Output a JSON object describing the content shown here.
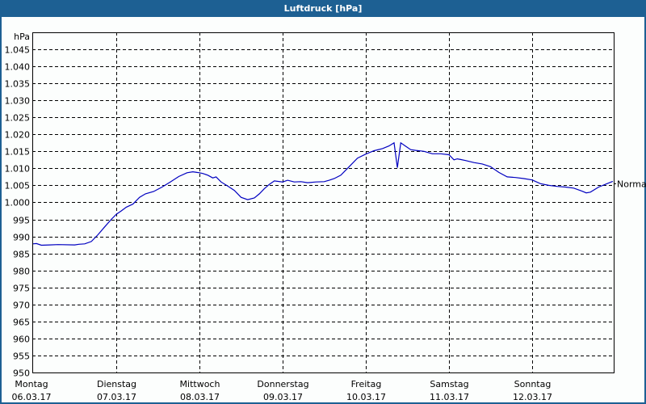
{
  "window": {
    "title": "Luftdruck [hPa]",
    "title_bar_color": "#1d6093"
  },
  "chart_data": {
    "type": "line",
    "title": "Luftdruck [hPa]",
    "ylabel": "hPa",
    "xlabel": "",
    "ylim": [
      950,
      1050
    ],
    "yticks": [
      "1.045",
      "1.040",
      "1.035",
      "1.030",
      "1.025",
      "1.020",
      "1.015",
      "1.010",
      "1.005",
      "1.000",
      "995",
      "990",
      "985",
      "980",
      "975",
      "970",
      "965",
      "960",
      "955",
      "950"
    ],
    "ytick_values": [
      1045,
      1040,
      1035,
      1030,
      1025,
      1020,
      1015,
      1010,
      1005,
      1000,
      995,
      990,
      985,
      980,
      975,
      970,
      965,
      960,
      955,
      950
    ],
    "x_categories": [
      {
        "day": "Montag",
        "date": "06.03.17"
      },
      {
        "day": "Dienstag",
        "date": "07.03.17"
      },
      {
        "day": "Mittwoch",
        "date": "08.03.17"
      },
      {
        "day": "Donnerstag",
        "date": "09.03.17"
      },
      {
        "day": "Freitag",
        "date": "10.03.17"
      },
      {
        "day": "Samstag",
        "date": "11.03.17"
      },
      {
        "day": "Sonntag",
        "date": "12.03.17"
      }
    ],
    "grid": true,
    "grid_style": "dashed",
    "reference_line": {
      "label": "Normal",
      "value": 1005.5
    },
    "line_color": "#0000c0",
    "series": [
      {
        "name": "Luftdruck",
        "x_day_fraction": [
          0,
          0.04,
          0.1,
          0.2,
          0.3,
          0.5,
          0.55,
          0.62,
          0.7,
          0.78,
          0.86,
          0.94,
          1.0,
          1.06,
          1.12,
          1.2,
          1.28,
          1.35,
          1.45,
          1.55,
          1.65,
          1.75,
          1.85,
          1.92,
          1.97,
          2.0,
          2.04,
          2.1,
          2.16,
          2.2,
          2.26,
          2.34,
          2.42,
          2.5,
          2.58,
          2.66,
          2.72,
          2.78,
          2.84,
          2.9,
          3.0,
          3.06,
          3.14,
          3.22,
          3.3,
          3.4,
          3.5,
          3.56,
          3.62,
          3.7,
          3.8,
          3.9,
          4.0,
          4.1,
          4.2,
          4.28,
          4.34,
          4.38,
          4.42,
          4.48,
          4.54,
          4.6,
          4.7,
          4.8,
          4.9,
          5.0,
          5.06,
          5.1,
          5.14,
          5.2,
          5.3,
          5.4,
          5.5,
          5.6,
          5.7,
          5.8,
          5.9,
          6.0,
          6.1,
          6.2,
          6.3,
          6.4,
          6.5,
          6.6,
          6.65,
          6.7,
          6.8,
          6.9,
          6.97
        ],
        "values": [
          987.8,
          987.9,
          987.4,
          987.5,
          987.6,
          987.5,
          987.7,
          987.8,
          988.5,
          990.5,
          992.8,
          995.0,
          996.5,
          997.5,
          998.6,
          999.5,
          1001.5,
          1002.5,
          1003.2,
          1004.5,
          1006.0,
          1007.6,
          1008.7,
          1009.0,
          1008.8,
          1008.7,
          1008.5,
          1008.0,
          1007.2,
          1007.5,
          1006.0,
          1004.8,
          1003.5,
          1001.5,
          1000.8,
          1001.3,
          1002.5,
          1004.0,
          1005.3,
          1006.3,
          1006.0,
          1006.5,
          1006.0,
          1006.1,
          1005.8,
          1006.0,
          1006.1,
          1006.5,
          1007.0,
          1008.0,
          1010.5,
          1013.0,
          1014.2,
          1015.2,
          1015.8,
          1016.6,
          1017.5,
          1010.2,
          1017.5,
          1016.5,
          1015.5,
          1015.3,
          1015.0,
          1014.3,
          1014.3,
          1014.0,
          1012.5,
          1012.8,
          1012.6,
          1012.3,
          1011.7,
          1011.3,
          1010.5,
          1008.8,
          1007.5,
          1007.3,
          1007.0,
          1006.6,
          1005.5,
          1005.0,
          1004.7,
          1004.5,
          1004.2,
          1003.3,
          1002.8,
          1003.0,
          1004.5,
          1005.5,
          1006.2
        ]
      }
    ]
  }
}
